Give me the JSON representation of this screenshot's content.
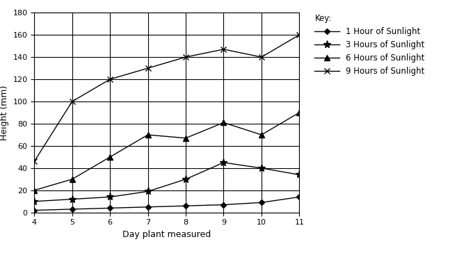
{
  "chart_data": {
    "type": "line",
    "x_label": "Day plant measured",
    "y_label": "Height (mm)",
    "x": [
      4,
      5,
      6,
      7,
      8,
      9,
      10,
      11
    ],
    "xlim": [
      4,
      11
    ],
    "xticks": [
      4,
      5,
      6,
      7,
      8,
      9,
      10,
      11
    ],
    "ylim": [
      0,
      180
    ],
    "yticks": [
      0,
      20,
      40,
      60,
      80,
      100,
      120,
      140,
      160,
      180
    ],
    "grid": true,
    "legend": "upper left",
    "legend_title": "Key:",
    "series": [
      {
        "name": "1 Hour of Sunlight",
        "color": "#000000",
        "marker": "diamond",
        "line_style": "solid",
        "values": [
          2,
          3,
          4,
          5,
          6,
          7,
          9,
          14
        ]
      },
      {
        "name": "3 Hours of Sunlight",
        "color": "#000000",
        "marker": "star",
        "line_style": "solid",
        "values": [
          10,
          12,
          14,
          19,
          30,
          45,
          40,
          34
        ]
      },
      {
        "name": "6 Hours of Sunlight",
        "color": "#000000",
        "marker": "triangle",
        "line_style": "solid",
        "values": [
          20,
          30,
          50,
          70,
          67,
          81,
          70,
          90
        ]
      },
      {
        "name": "9 Hours of Sunlight",
        "color": "#000000",
        "marker": "x",
        "line_style": "solid",
        "values": [
          46,
          100,
          120,
          130,
          140,
          147,
          140,
          160
        ]
      }
    ]
  }
}
